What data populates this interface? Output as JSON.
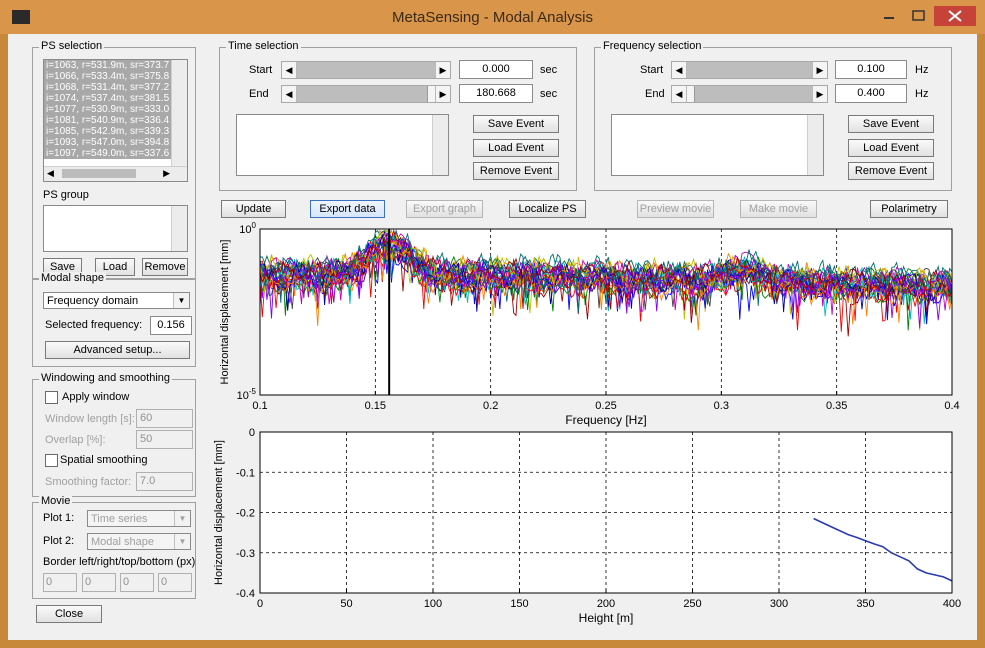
{
  "window": {
    "title": "MetaSensing - Modal Analysis"
  },
  "ps_selection": {
    "title": "PS selection",
    "items": [
      "i=1063, r=531.9m, sr=373.7",
      "i=1066, r=533.4m, sr=375.8",
      "i=1068, r=531.4m, sr=377.2",
      "i=1074, r=537.4m, sr=381.5",
      "i=1077, r=530.9m, sr=333.0",
      "i=1081, r=540.9m, sr=336.4",
      "i=1085, r=542.9m, sr=339.3",
      "i=1093, r=547.0m, sr=394.8",
      "i=1097, r=549.0m, sr=337.6"
    ],
    "group_label": "PS group",
    "save": "Save",
    "load": "Load",
    "remove": "Remove"
  },
  "modal_shape": {
    "title": "Modal shape",
    "domain_value": "Frequency domain",
    "selected_freq_label": "Selected frequency:",
    "selected_freq_value": "0.156",
    "advanced": "Advanced setup..."
  },
  "windowing": {
    "title": "Windowing and smoothing",
    "apply_window": "Apply window",
    "window_length_label": "Window length [s]:",
    "window_length_value": "60",
    "overlap_label": "Overlap [%]:",
    "overlap_value": "50",
    "spatial": "Spatial smoothing",
    "smoothing_label": "Smoothing factor:",
    "smoothing_value": "7.0"
  },
  "movie": {
    "title": "Movie",
    "plot1_label": "Plot 1:",
    "plot1_value": "Time series",
    "plot2_label": "Plot 2:",
    "plot2_value": "Modal shape",
    "border_label": "Border left/right/top/bottom (px)",
    "borders": [
      "0",
      "0",
      "0",
      "0"
    ]
  },
  "close": "Close",
  "time_selection": {
    "title": "Time selection",
    "start_label": "Start",
    "start_value": "0.000",
    "start_unit": "sec",
    "end_label": "End",
    "end_value": "180.668",
    "end_unit": "sec",
    "save_event": "Save Event",
    "load_event": "Load Event",
    "remove_event": "Remove Event"
  },
  "frequency_selection": {
    "title": "Frequency selection",
    "start_label": "Start",
    "start_value": "0.100",
    "start_unit": "Hz",
    "end_label": "End",
    "end_value": "0.400",
    "end_unit": "Hz",
    "save_event": "Save Event",
    "load_event": "Load Event",
    "remove_event": "Remove Event"
  },
  "toolbar": {
    "update": "Update",
    "export_data": "Export data",
    "export_graph": "Export graph",
    "localize_ps": "Localize PS",
    "preview_movie": "Preview movie",
    "make_movie": "Make movie",
    "polarimetry": "Polarimetry"
  },
  "chart_data": [
    {
      "type": "line",
      "xlabel": "Frequency [Hz]",
      "ylabel": "Horizontal displacement [mm]",
      "xlim": [
        0.1,
        0.4
      ],
      "xticks": [
        "0.1",
        "0.15",
        "0.2",
        "0.25",
        "0.3",
        "0.35",
        "0.4"
      ],
      "yscale": "log",
      "ylim": [
        1e-05,
        1
      ],
      "ytick_top_base": "10",
      "ytick_top_exp": "0",
      "ytick_bottom_base": "10",
      "ytick_bottom_exp": "-5",
      "selected_frequency": 0.156,
      "n_series": 24,
      "peak_frequency": 0.156,
      "grid": "vertical dashed"
    },
    {
      "type": "line",
      "xlabel": "Height [m]",
      "ylabel": "Horizontal displacement [mm]",
      "xlim": [
        0,
        400
      ],
      "ylim": [
        -0.4,
        0
      ],
      "xticks": [
        "0",
        "50",
        "100",
        "150",
        "200",
        "250",
        "300",
        "350",
        "400"
      ],
      "yticks": [
        "0",
        "-0.1",
        "-0.2",
        "-0.3",
        "-0.4"
      ],
      "color": "#2a3bb0",
      "series": [
        {
          "x": [
            320,
            325,
            330,
            335,
            340,
            345,
            350,
            355,
            360,
            365,
            370,
            375,
            380,
            385,
            390,
            395,
            400
          ],
          "y": [
            -0.215,
            -0.225,
            -0.235,
            -0.245,
            -0.255,
            -0.262,
            -0.27,
            -0.278,
            -0.285,
            -0.3,
            -0.31,
            -0.32,
            -0.34,
            -0.35,
            -0.355,
            -0.36,
            -0.37
          ]
        }
      ]
    }
  ]
}
